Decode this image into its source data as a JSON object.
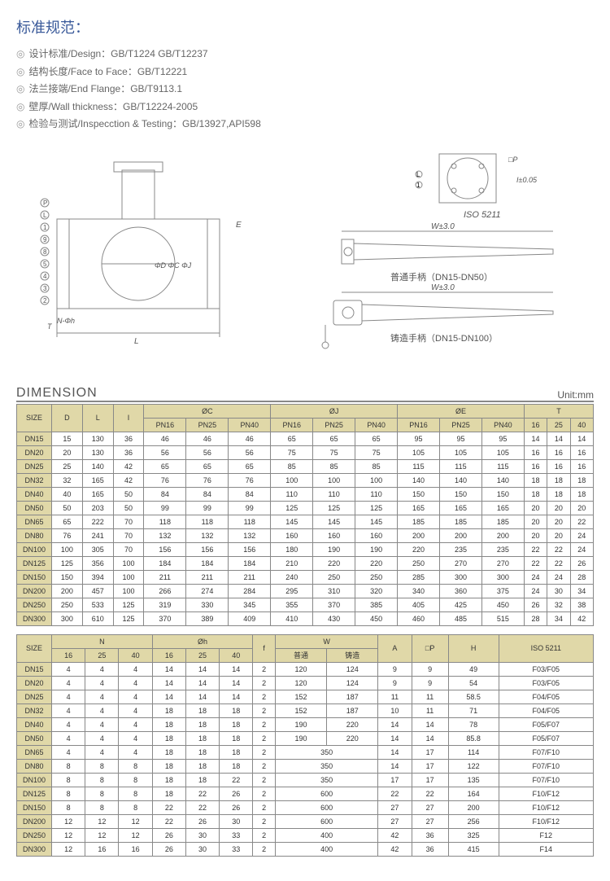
{
  "title": "标准规范：",
  "specs": [
    "设计标准/Design：GB/T1224  GB/T12237",
    "结构长度/Face to Face：GB/T12221",
    "法兰接端/End Flange：GB/T9113.1",
    "壁厚/Wall thickness：GB/T12224-2005",
    "检验与测试/Inspecction & Testing：GB/13927,API598"
  ],
  "diagram": {
    "iso_label": "ISO 5211",
    "tol1": "I±0.05",
    "w_tol": "W±3.0",
    "handle1": "普通手柄（DN15-DN50）",
    "handle2": "铸造手柄（DN15-DN100）",
    "dims": [
      "ΦD",
      "ΦC",
      "ΦJ",
      "L",
      "E",
      "T",
      "N-Φh",
      "□P"
    ]
  },
  "dim_title": "DIMENSION",
  "unit": "Unit:mm",
  "table1": {
    "headers": {
      "main": [
        "SIZE",
        "D",
        "L",
        "I",
        "ØC",
        "ØJ",
        "ØE",
        "T"
      ],
      "sub_c": [
        "PN16",
        "PN25",
        "PN40"
      ],
      "sub_j": [
        "PN16",
        "PN25",
        "PN40"
      ],
      "sub_e": [
        "PN16",
        "PN25",
        "PN40"
      ],
      "sub_t": [
        "16",
        "25",
        "40"
      ]
    },
    "rows": [
      [
        "DN15",
        "15",
        "130",
        "36",
        "46",
        "46",
        "46",
        "65",
        "65",
        "65",
        "95",
        "95",
        "95",
        "14",
        "14",
        "14"
      ],
      [
        "DN20",
        "20",
        "130",
        "36",
        "56",
        "56",
        "56",
        "75",
        "75",
        "75",
        "105",
        "105",
        "105",
        "16",
        "16",
        "16"
      ],
      [
        "DN25",
        "25",
        "140",
        "42",
        "65",
        "65",
        "65",
        "85",
        "85",
        "85",
        "115",
        "115",
        "115",
        "16",
        "16",
        "16"
      ],
      [
        "DN32",
        "32",
        "165",
        "42",
        "76",
        "76",
        "76",
        "100",
        "100",
        "100",
        "140",
        "140",
        "140",
        "18",
        "18",
        "18"
      ],
      [
        "DN40",
        "40",
        "165",
        "50",
        "84",
        "84",
        "84",
        "110",
        "110",
        "110",
        "150",
        "150",
        "150",
        "18",
        "18",
        "18"
      ],
      [
        "DN50",
        "50",
        "203",
        "50",
        "99",
        "99",
        "99",
        "125",
        "125",
        "125",
        "165",
        "165",
        "165",
        "20",
        "20",
        "20"
      ],
      [
        "DN65",
        "65",
        "222",
        "70",
        "118",
        "118",
        "118",
        "145",
        "145",
        "145",
        "185",
        "185",
        "185",
        "20",
        "20",
        "22"
      ],
      [
        "DN80",
        "76",
        "241",
        "70",
        "132",
        "132",
        "132",
        "160",
        "160",
        "160",
        "200",
        "200",
        "200",
        "20",
        "20",
        "24"
      ],
      [
        "DN100",
        "100",
        "305",
        "70",
        "156",
        "156",
        "156",
        "180",
        "190",
        "190",
        "220",
        "235",
        "235",
        "22",
        "22",
        "24"
      ],
      [
        "DN125",
        "125",
        "356",
        "100",
        "184",
        "184",
        "184",
        "210",
        "220",
        "220",
        "250",
        "270",
        "270",
        "22",
        "22",
        "26"
      ],
      [
        "DN150",
        "150",
        "394",
        "100",
        "211",
        "211",
        "211",
        "240",
        "250",
        "250",
        "285",
        "300",
        "300",
        "24",
        "24",
        "28"
      ],
      [
        "DN200",
        "200",
        "457",
        "100",
        "266",
        "274",
        "284",
        "295",
        "310",
        "320",
        "340",
        "360",
        "375",
        "24",
        "30",
        "34"
      ],
      [
        "DN250",
        "250",
        "533",
        "125",
        "319",
        "330",
        "345",
        "355",
        "370",
        "385",
        "405",
        "425",
        "450",
        "26",
        "32",
        "38"
      ],
      [
        "DN300",
        "300",
        "610",
        "125",
        "370",
        "389",
        "409",
        "410",
        "430",
        "450",
        "460",
        "485",
        "515",
        "28",
        "34",
        "42"
      ]
    ]
  },
  "table2": {
    "headers": {
      "main": [
        "SIZE",
        "N",
        "Øh",
        "f",
        "W",
        "A",
        "□P",
        "H",
        "ISO 5211"
      ],
      "sub_n": [
        "16",
        "25",
        "40"
      ],
      "sub_h": [
        "16",
        "25",
        "40"
      ],
      "sub_w": [
        "普通",
        "铸造"
      ]
    },
    "rows": [
      {
        "size": "DN15",
        "n": [
          "4",
          "4",
          "4"
        ],
        "h": [
          "14",
          "14",
          "14"
        ],
        "f": "2",
        "w": [
          "120",
          "124"
        ],
        "a": "9",
        "p": "9",
        "hh": "49",
        "iso": "F03/F05"
      },
      {
        "size": "DN20",
        "n": [
          "4",
          "4",
          "4"
        ],
        "h": [
          "14",
          "14",
          "14"
        ],
        "f": "2",
        "w": [
          "120",
          "124"
        ],
        "a": "9",
        "p": "9",
        "hh": "54",
        "iso": "F03/F05"
      },
      {
        "size": "DN25",
        "n": [
          "4",
          "4",
          "4"
        ],
        "h": [
          "14",
          "14",
          "14"
        ],
        "f": "2",
        "w": [
          "152",
          "187"
        ],
        "a": "11",
        "p": "11",
        "hh": "58.5",
        "iso": "F04/F05"
      },
      {
        "size": "DN32",
        "n": [
          "4",
          "4",
          "4"
        ],
        "h": [
          "18",
          "18",
          "18"
        ],
        "f": "2",
        "w": [
          "152",
          "187"
        ],
        "a": "10",
        "p": "11",
        "hh": "71",
        "iso": "F04/F05"
      },
      {
        "size": "DN40",
        "n": [
          "4",
          "4",
          "4"
        ],
        "h": [
          "18",
          "18",
          "18"
        ],
        "f": "2",
        "w": [
          "190",
          "220"
        ],
        "a": "14",
        "p": "14",
        "hh": "78",
        "iso": "F05/F07"
      },
      {
        "size": "DN50",
        "n": [
          "4",
          "4",
          "4"
        ],
        "h": [
          "18",
          "18",
          "18"
        ],
        "f": "2",
        "w": [
          "190",
          "220"
        ],
        "a": "14",
        "p": "14",
        "hh": "85.8",
        "iso": "F05/F07"
      },
      {
        "size": "DN65",
        "n": [
          "4",
          "4",
          "4"
        ],
        "h": [
          "18",
          "18",
          "18"
        ],
        "f": "2",
        "w_merged": "350",
        "a": "14",
        "p": "17",
        "hh": "114",
        "iso": "F07/F10"
      },
      {
        "size": "DN80",
        "n": [
          "8",
          "8",
          "8"
        ],
        "h": [
          "18",
          "18",
          "18"
        ],
        "f": "2",
        "w_merged": "350",
        "a": "14",
        "p": "17",
        "hh": "122",
        "iso": "F07/F10"
      },
      {
        "size": "DN100",
        "n": [
          "8",
          "8",
          "8"
        ],
        "h": [
          "18",
          "18",
          "22"
        ],
        "f": "2",
        "w_merged": "350",
        "a": "17",
        "p": "17",
        "hh": "135",
        "iso": "F07/F10"
      },
      {
        "size": "DN125",
        "n": [
          "8",
          "8",
          "8"
        ],
        "h": [
          "18",
          "22",
          "26"
        ],
        "f": "2",
        "w_merged": "600",
        "a": "22",
        "p": "22",
        "hh": "164",
        "iso": "F10/F12"
      },
      {
        "size": "DN150",
        "n": [
          "8",
          "8",
          "8"
        ],
        "h": [
          "22",
          "22",
          "26"
        ],
        "f": "2",
        "w_merged": "600",
        "a": "27",
        "p": "27",
        "hh": "200",
        "iso": "F10/F12"
      },
      {
        "size": "DN200",
        "n": [
          "12",
          "12",
          "12"
        ],
        "h": [
          "22",
          "26",
          "30"
        ],
        "f": "2",
        "w_merged": "600",
        "a": "27",
        "p": "27",
        "hh": "256",
        "iso": "F10/F12"
      },
      {
        "size": "DN250",
        "n": [
          "12",
          "12",
          "12"
        ],
        "h": [
          "26",
          "30",
          "33"
        ],
        "f": "2",
        "w_merged": "400",
        "a": "42",
        "p": "36",
        "hh": "325",
        "iso": "F12"
      },
      {
        "size": "DN300",
        "n": [
          "12",
          "16",
          "16"
        ],
        "h": [
          "26",
          "30",
          "33"
        ],
        "f": "2",
        "w_merged": "400",
        "a": "42",
        "p": "36",
        "hh": "415",
        "iso": "F14"
      }
    ]
  }
}
